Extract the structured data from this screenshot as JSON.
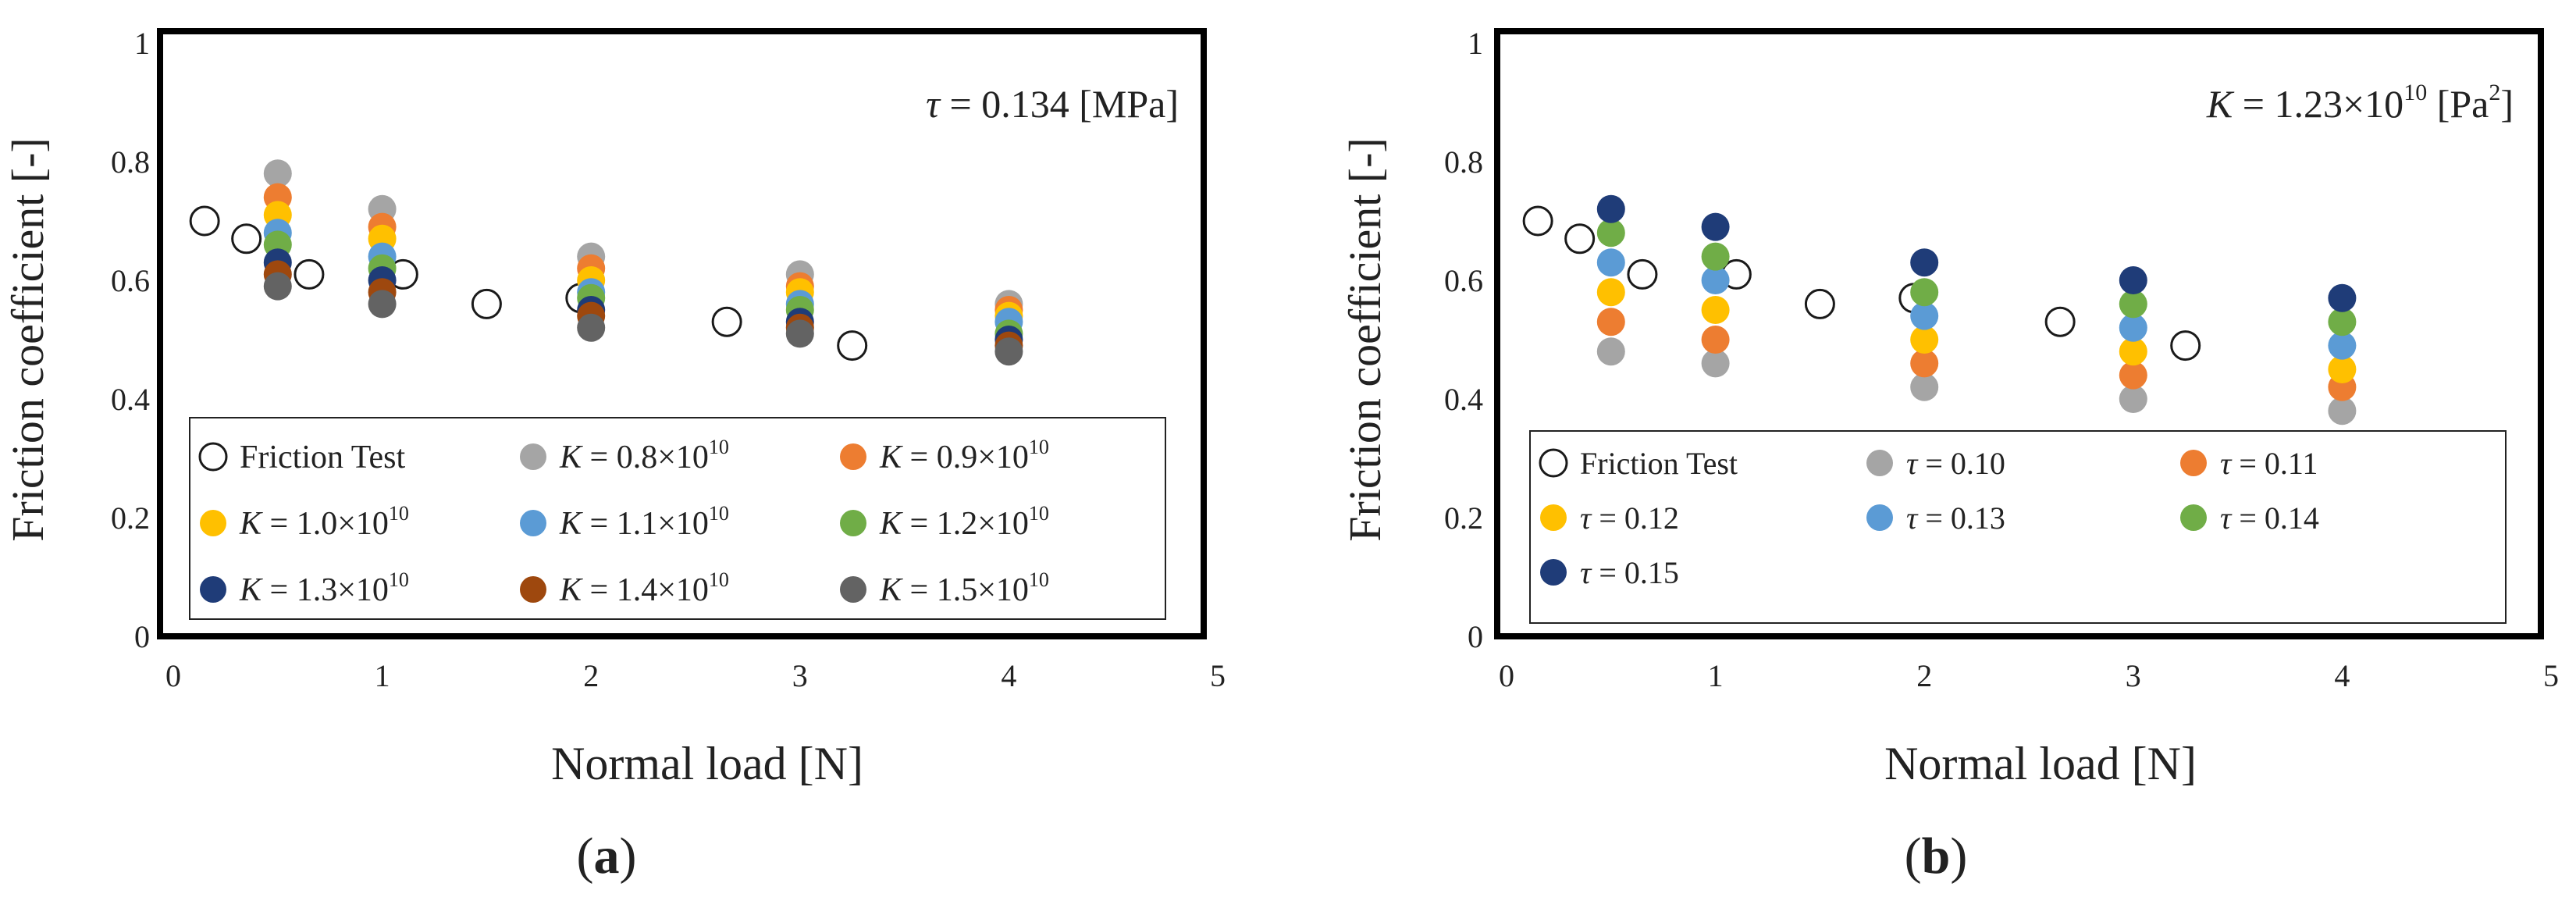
{
  "figure": {
    "panels": [
      {
        "id": "a",
        "caption_open": "(",
        "letter": "a",
        "caption_close": ")"
      },
      {
        "id": "b",
        "caption_open": "(",
        "letter": "b",
        "caption_close": ")"
      }
    ]
  },
  "chart_data": [
    {
      "panel": "a",
      "type": "scatter",
      "xlabel": "Normal load [N]",
      "ylabel": "Friction coefficient  [-]",
      "xlim": [
        0,
        5
      ],
      "ylim": [
        0,
        1
      ],
      "xticks": [
        "0",
        "1",
        "2",
        "3",
        "4",
        "5"
      ],
      "yticks": [
        "0",
        "0.2",
        "0.4",
        "0.6",
        "0.8",
        "1"
      ],
      "grid": false,
      "annotation": {
        "symbol": "τ",
        "text": " = 0.134 [MPa]"
      },
      "legend_columns": 3,
      "series": [
        {
          "name": "Friction Test",
          "label_sym": "",
          "label_rest": "Friction Test",
          "label_exp": "",
          "marker": "open",
          "color": "#1a1a1a",
          "x": [
            0.15,
            0.35,
            0.65,
            1.1,
            1.5,
            1.95,
            2.65,
            3.25
          ],
          "y": [
            0.7,
            0.67,
            0.61,
            0.61,
            0.56,
            0.57,
            0.53,
            0.49
          ]
        },
        {
          "name": "K = 0.8×10^10",
          "label_sym": "K",
          "label_rest": " = 0.8×10",
          "label_exp": "10",
          "marker": "filled",
          "color": "#a5a5a5",
          "x": [
            0.5,
            1.0,
            2.0,
            3.0,
            4.0
          ],
          "y": [
            0.78,
            0.72,
            0.64,
            0.61,
            0.56
          ]
        },
        {
          "name": "K = 0.9×10^10",
          "label_sym": "K",
          "label_rest": " = 0.9×10",
          "label_exp": "10",
          "marker": "filled",
          "color": "#ed7d31",
          "x": [
            0.5,
            1.0,
            2.0,
            3.0,
            4.0
          ],
          "y": [
            0.74,
            0.69,
            0.62,
            0.59,
            0.55
          ]
        },
        {
          "name": "K = 1.0×10^10",
          "label_sym": "K",
          "label_rest": " = 1.0×10",
          "label_exp": "10",
          "marker": "filled",
          "color": "#ffc000",
          "x": [
            0.5,
            1.0,
            2.0,
            3.0,
            4.0
          ],
          "y": [
            0.71,
            0.67,
            0.6,
            0.58,
            0.54
          ]
        },
        {
          "name": "K = 1.1×10^10",
          "label_sym": "K",
          "label_rest": " = 1.1×10",
          "label_exp": "10",
          "marker": "filled",
          "color": "#5b9bd5",
          "x": [
            0.5,
            1.0,
            2.0,
            3.0,
            4.0
          ],
          "y": [
            0.68,
            0.64,
            0.58,
            0.56,
            0.53
          ]
        },
        {
          "name": "K = 1.2×10^10",
          "label_sym": "K",
          "label_rest": " = 1.2×10",
          "label_exp": "10",
          "marker": "filled",
          "color": "#70ad47",
          "x": [
            0.5,
            1.0,
            2.0,
            3.0,
            4.0
          ],
          "y": [
            0.66,
            0.62,
            0.57,
            0.55,
            0.51
          ]
        },
        {
          "name": "K = 1.3×10^10",
          "label_sym": "K",
          "label_rest": " = 1.3×10",
          "label_exp": "10",
          "marker": "filled",
          "color": "#1f3c78",
          "x": [
            0.5,
            1.0,
            2.0,
            3.0,
            4.0
          ],
          "y": [
            0.63,
            0.6,
            0.55,
            0.53,
            0.5
          ]
        },
        {
          "name": "K = 1.4×10^10",
          "label_sym": "K",
          "label_rest": " = 1.4×10",
          "label_exp": "10",
          "marker": "filled",
          "color": "#9e480e",
          "x": [
            0.5,
            1.0,
            2.0,
            3.0,
            4.0
          ],
          "y": [
            0.61,
            0.58,
            0.54,
            0.52,
            0.49
          ]
        },
        {
          "name": "K = 1.5×10^10",
          "label_sym": "K",
          "label_rest": " = 1.5×10",
          "label_exp": "10",
          "marker": "filled",
          "color": "#636363",
          "x": [
            0.5,
            1.0,
            2.0,
            3.0,
            4.0
          ],
          "y": [
            0.59,
            0.56,
            0.52,
            0.51,
            0.48
          ]
        }
      ]
    },
    {
      "panel": "b",
      "type": "scatter",
      "xlabel": "Normal load [N]",
      "ylabel": "Friction coefficient  [-]",
      "xlim": [
        0,
        5
      ],
      "ylim": [
        0,
        1
      ],
      "xticks": [
        "0",
        "1",
        "2",
        "3",
        "4",
        "5"
      ],
      "yticks": [
        "0",
        "0.2",
        "0.4",
        "0.6",
        "0.8",
        "1"
      ],
      "grid": false,
      "annotation": {
        "symbol": "K",
        "text": " = 1.23×10",
        "exp": "10",
        "unit": " [Pa",
        "unit_exp": "2",
        "unit_close": "]"
      },
      "legend_columns": 3,
      "series": [
        {
          "name": "Friction Test",
          "label_sym": "",
          "label_rest": "Friction Test",
          "label_exp": "",
          "marker": "open",
          "color": "#1a1a1a",
          "x": [
            0.15,
            0.35,
            0.65,
            1.1,
            1.5,
            1.95,
            2.65,
            3.25
          ],
          "y": [
            0.7,
            0.67,
            0.61,
            0.61,
            0.56,
            0.57,
            0.53,
            0.49
          ]
        },
        {
          "name": "τ = 0.10",
          "label_sym": "τ",
          "label_rest": " = 0.10",
          "label_exp": "",
          "marker": "filled",
          "color": "#a5a5a5",
          "x": [
            0.5,
            1.0,
            2.0,
            3.0,
            4.0
          ],
          "y": [
            0.48,
            0.46,
            0.42,
            0.4,
            0.38
          ]
        },
        {
          "name": "τ = 0.11",
          "label_sym": "τ",
          "label_rest": " = 0.11",
          "label_exp": "",
          "marker": "filled",
          "color": "#ed7d31",
          "x": [
            0.5,
            1.0,
            2.0,
            3.0,
            4.0
          ],
          "y": [
            0.53,
            0.5,
            0.46,
            0.44,
            0.42
          ]
        },
        {
          "name": "τ = 0.12",
          "label_sym": "τ",
          "label_rest": " = 0.12",
          "label_exp": "",
          "marker": "filled",
          "color": "#ffc000",
          "x": [
            0.5,
            1.0,
            2.0,
            3.0,
            4.0
          ],
          "y": [
            0.58,
            0.55,
            0.5,
            0.48,
            0.45
          ]
        },
        {
          "name": "τ = 0.13",
          "label_sym": "τ",
          "label_rest": " = 0.13",
          "label_exp": "",
          "marker": "filled",
          "color": "#5b9bd5",
          "x": [
            0.5,
            1.0,
            2.0,
            3.0,
            4.0
          ],
          "y": [
            0.63,
            0.6,
            0.54,
            0.52,
            0.49
          ]
        },
        {
          "name": "τ = 0.14",
          "label_sym": "τ",
          "label_rest": " = 0.14",
          "label_exp": "",
          "marker": "filled",
          "color": "#70ad47",
          "x": [
            0.5,
            1.0,
            2.0,
            3.0,
            4.0
          ],
          "y": [
            0.68,
            0.64,
            0.58,
            0.56,
            0.53
          ]
        },
        {
          "name": "τ = 0.15",
          "label_sym": "τ",
          "label_rest": " = 0.15",
          "label_exp": "",
          "marker": "filled",
          "color": "#1f3c78",
          "x": [
            0.5,
            1.0,
            2.0,
            3.0,
            4.0
          ],
          "y": [
            0.72,
            0.69,
            0.63,
            0.6,
            0.57
          ]
        }
      ]
    }
  ]
}
